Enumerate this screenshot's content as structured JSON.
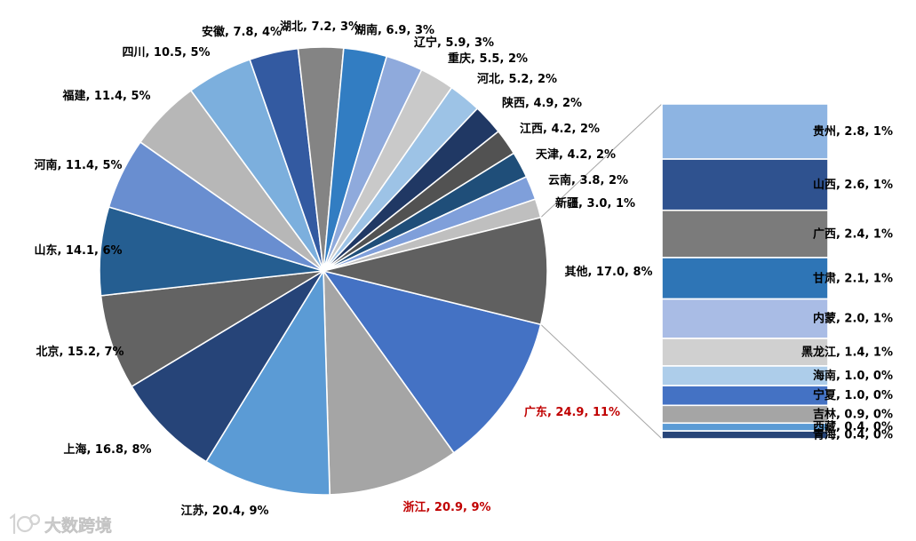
{
  "watermark": {
    "text": "大数跨境"
  },
  "chart_data": {
    "type": "pie",
    "subtype": "bar-of-pie",
    "title": "",
    "default_label_color": "#000000",
    "connector_color": "#A6A6A6",
    "slices": [
      {
        "name": "广东",
        "value": 24.9,
        "pct": 11,
        "color": "#4472C4",
        "label_color": "#C00000"
      },
      {
        "name": "浙江",
        "value": 20.9,
        "pct": 9,
        "color": "#A5A5A5",
        "label_color": "#C00000"
      },
      {
        "name": "江苏",
        "value": 20.4,
        "pct": 9,
        "color": "#5B9BD5"
      },
      {
        "name": "上海",
        "value": 16.8,
        "pct": 8,
        "color": "#264478"
      },
      {
        "name": "北京",
        "value": 15.2,
        "pct": 7,
        "color": "#636363"
      },
      {
        "name": "山东",
        "value": 14.1,
        "pct": 6,
        "color": "#255E91"
      },
      {
        "name": "河南",
        "value": 11.4,
        "pct": 5,
        "color": "#698ED0"
      },
      {
        "name": "福建",
        "value": 11.4,
        "pct": 5,
        "color": "#B7B7B7"
      },
      {
        "name": "四川",
        "value": 10.5,
        "pct": 5,
        "color": "#7CAFDD"
      },
      {
        "name": "安徽",
        "value": 7.8,
        "pct": 4,
        "color": "#335AA1"
      },
      {
        "name": "湖北",
        "value": 7.2,
        "pct": 3,
        "color": "#848484"
      },
      {
        "name": "湖南",
        "value": 6.9,
        "pct": 3,
        "color": "#327DC2"
      },
      {
        "name": "辽宁",
        "value": 5.9,
        "pct": 3,
        "color": "#8FAADC"
      },
      {
        "name": "重庆",
        "value": 5.5,
        "pct": 2,
        "color": "#C9C9C9"
      },
      {
        "name": "河北",
        "value": 5.2,
        "pct": 2,
        "color": "#9DC3E6"
      },
      {
        "name": "陕西",
        "value": 4.9,
        "pct": 2,
        "color": "#203864"
      },
      {
        "name": "江西",
        "value": 4.2,
        "pct": 2,
        "color": "#525252"
      },
      {
        "name": "天津",
        "value": 4.2,
        "pct": 2,
        "color": "#1F4E79"
      },
      {
        "name": "云南",
        "value": 3.8,
        "pct": 2,
        "color": "#7F9FDA"
      },
      {
        "name": "新疆",
        "value": 3.0,
        "pct": 1,
        "color": "#BFBFBF"
      },
      {
        "name": "其他",
        "value": 17.0,
        "pct": 8,
        "color": "#606060",
        "breakout": true
      }
    ],
    "breakout_bar": [
      {
        "name": "贵州",
        "value": 2.8,
        "pct": 1,
        "color": "#8DB4E2"
      },
      {
        "name": "山西",
        "value": 2.6,
        "pct": 1,
        "color": "#2F528F"
      },
      {
        "name": "广西",
        "value": 2.4,
        "pct": 1,
        "color": "#7B7B7B"
      },
      {
        "name": "甘肃",
        "value": 2.1,
        "pct": 1,
        "color": "#2E75B6"
      },
      {
        "name": "内蒙",
        "value": 2.0,
        "pct": 1,
        "color": "#A9BCE5"
      },
      {
        "name": "黑龙江",
        "value": 1.4,
        "pct": 1,
        "color": "#D0D0D0"
      },
      {
        "name": "海南",
        "value": 1.0,
        "pct": 0,
        "color": "#ADCDEA"
      },
      {
        "name": "宁夏",
        "value": 1.0,
        "pct": 0,
        "color": "#4472C4"
      },
      {
        "name": "吉林",
        "value": 0.9,
        "pct": 0,
        "color": "#A5A5A5"
      },
      {
        "name": "西藏",
        "value": 0.4,
        "pct": 0,
        "color": "#5B9BD5"
      },
      {
        "name": "青海",
        "value": 0.4,
        "pct": 0,
        "color": "#264478"
      }
    ]
  }
}
